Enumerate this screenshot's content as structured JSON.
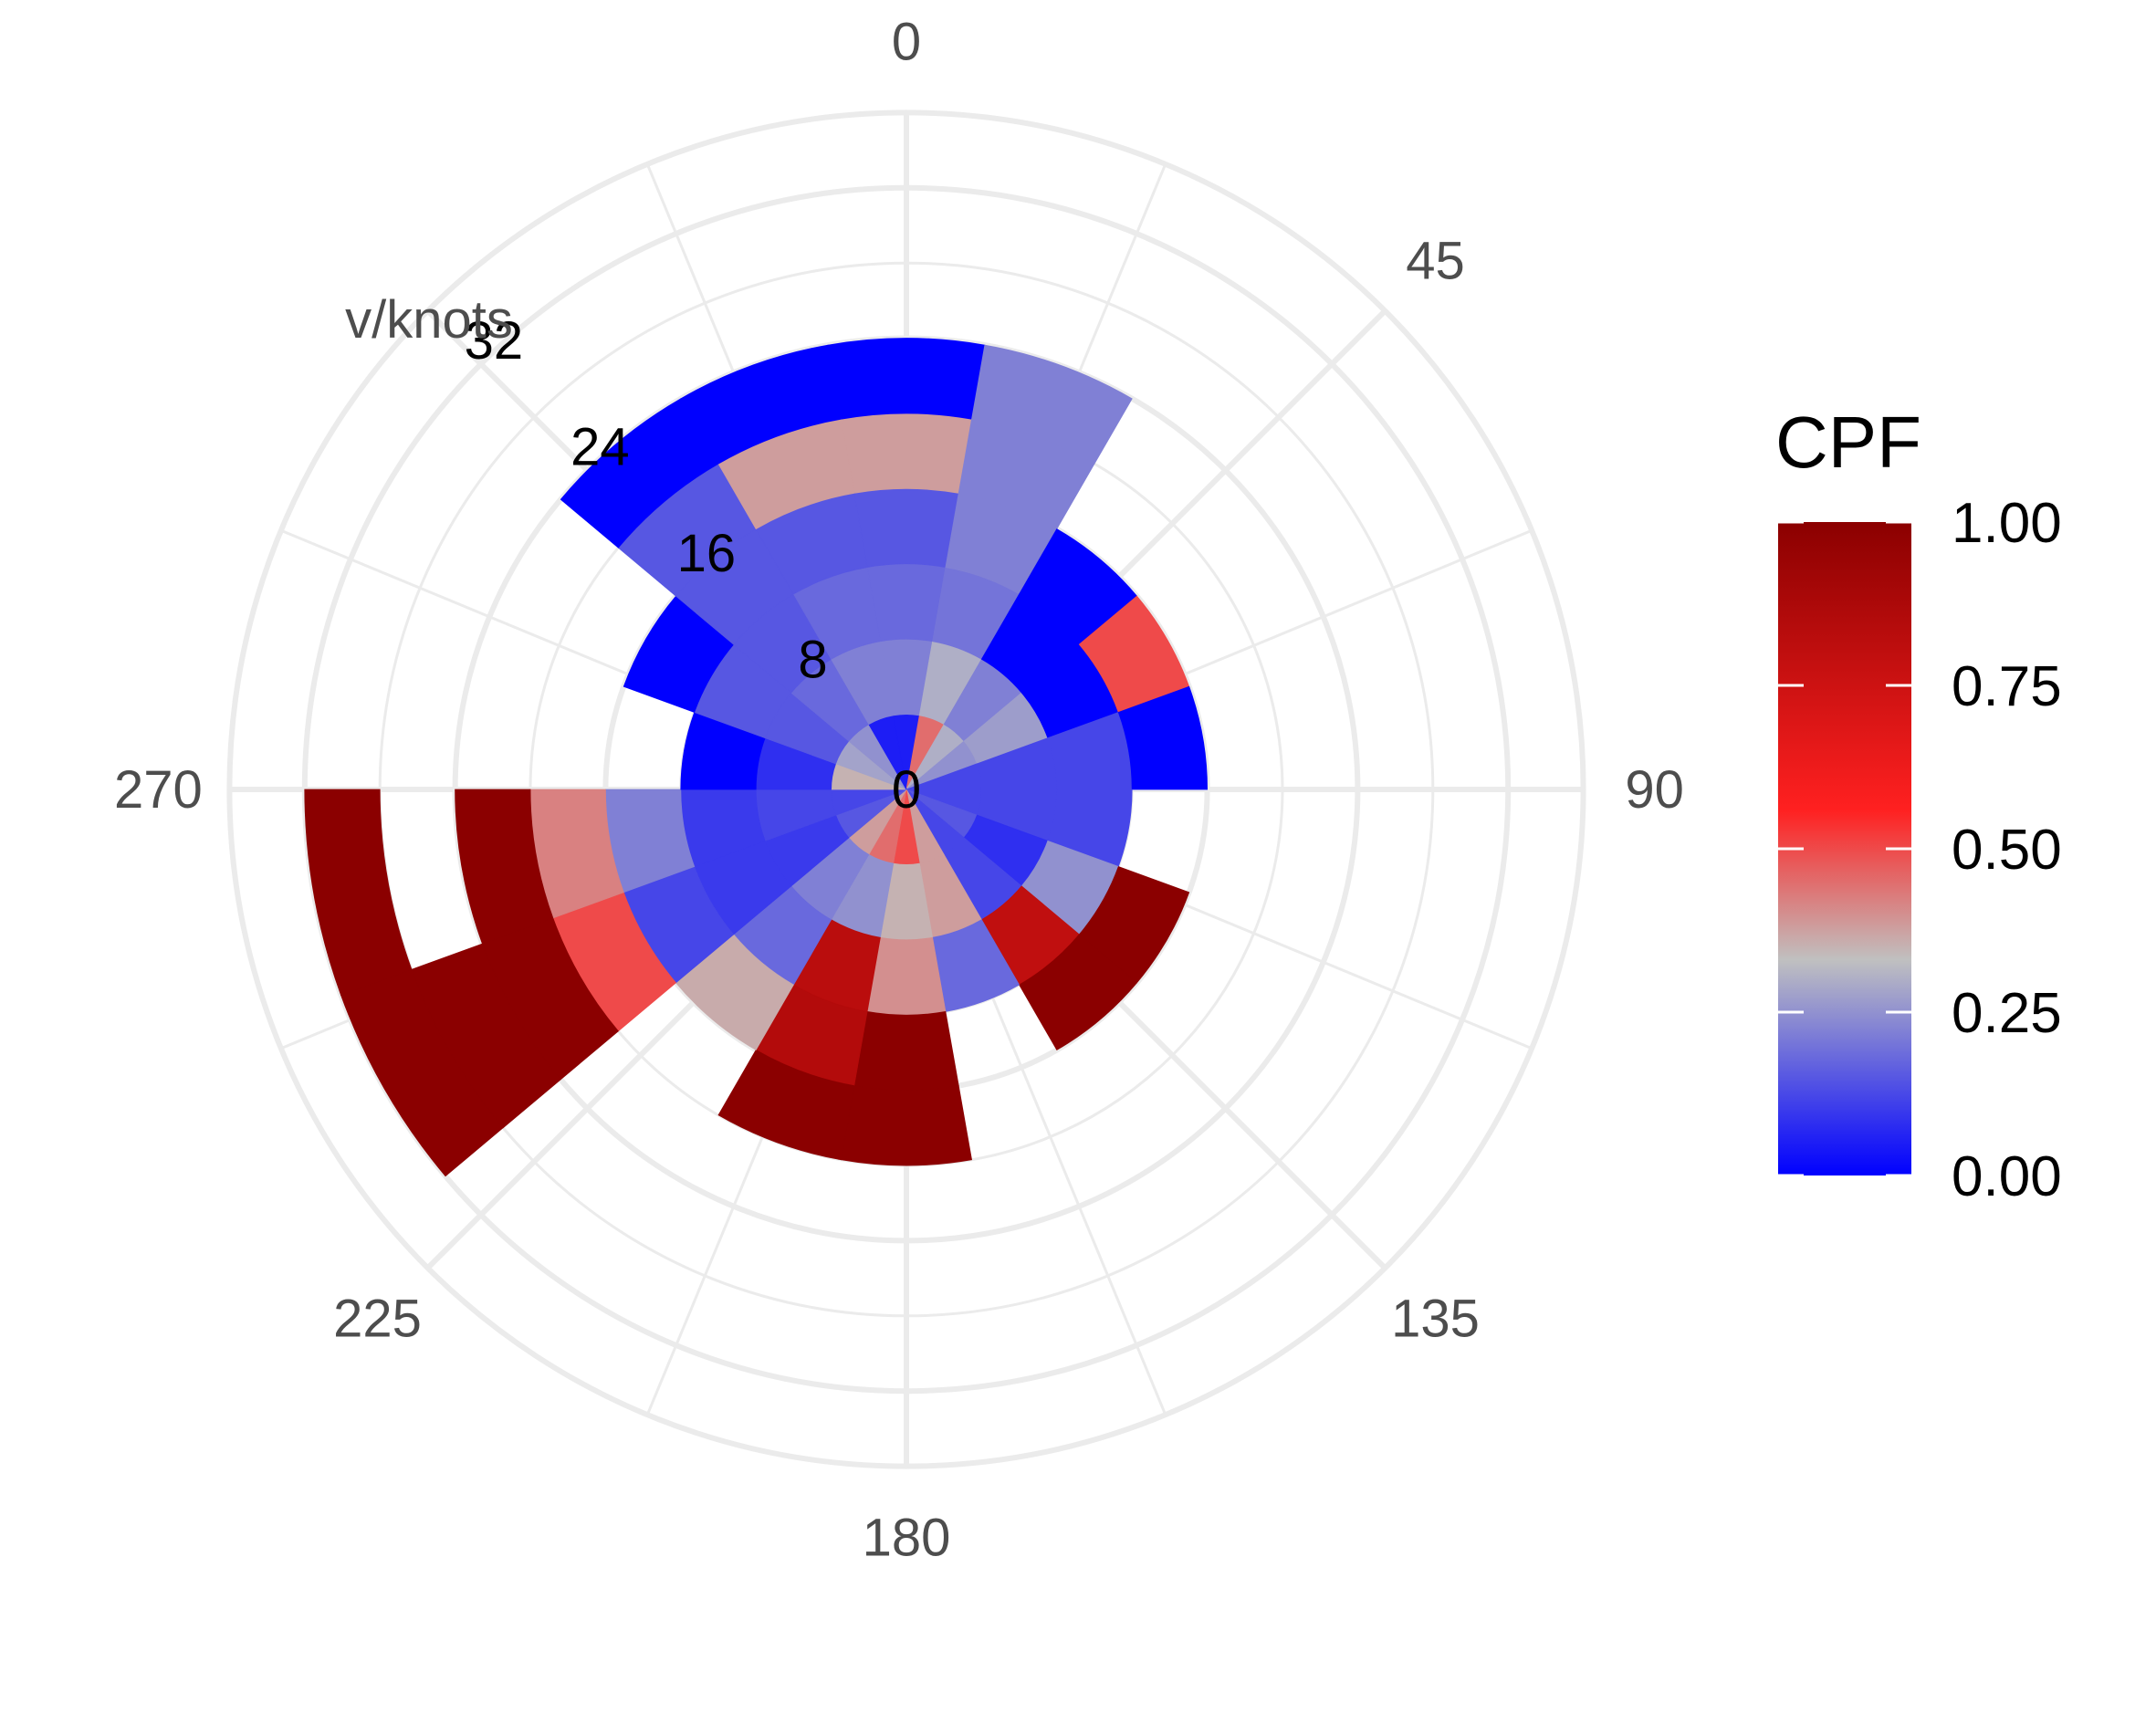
{
  "chart_data": {
    "type": "polar-heatmap",
    "title": "",
    "r_axis_title": "v/knots",
    "direction_ticks": [
      0,
      45,
      90,
      135,
      180,
      225,
      270
    ],
    "direction_tick_labels": [
      "0",
      "45",
      "90",
      "135",
      "180",
      "225",
      "270"
    ],
    "speed_ticks": [
      0,
      8,
      16,
      24,
      32
    ],
    "speed_tick_labels": [
      "0",
      "8",
      "16",
      "24",
      "32"
    ],
    "speed_range": [
      0,
      36
    ],
    "direction_bin_width": 20,
    "speed_bin_width": 4,
    "grid": true,
    "colorbar": {
      "title": "CPF",
      "range": [
        0,
        1
      ],
      "ticks": [
        0,
        0.25,
        0.5,
        0.75,
        1
      ],
      "tick_labels": [
        "0.00",
        "0.25",
        "0.50",
        "0.75",
        "1.00"
      ],
      "colors": [
        "#0000ff",
        "#c0c0c0",
        "#ff2020",
        "#8b0000"
      ],
      "placement": "right"
    },
    "cells": [
      {
        "direction": 0,
        "speed_bins": [
          [
            0,
            4,
            0.05
          ],
          [
            4,
            8,
            0.22
          ],
          [
            8,
            12,
            0.18
          ],
          [
            12,
            16,
            0.15
          ],
          [
            16,
            20,
            0.38
          ],
          [
            20,
            24,
            0.0
          ]
        ]
      },
      {
        "direction": 20,
        "speed_bins": [
          [
            0,
            4,
            0.45
          ],
          [
            4,
            8,
            0.3
          ],
          [
            8,
            12,
            0.2
          ],
          [
            12,
            16,
            0.22
          ],
          [
            16,
            20,
            0.22
          ],
          [
            20,
            24,
            0.22
          ]
        ]
      },
      {
        "direction": 40,
        "speed_bins": [
          [
            0,
            4,
            0.3
          ],
          [
            4,
            8,
            0.22
          ],
          [
            8,
            12,
            0.0
          ],
          [
            12,
            16,
            0.0
          ]
        ]
      },
      {
        "direction": 60,
        "speed_bins": [
          [
            0,
            4,
            0.25
          ],
          [
            4,
            8,
            0.27
          ],
          [
            8,
            12,
            0.0
          ],
          [
            12,
            16,
            0.5
          ]
        ]
      },
      {
        "direction": 80,
        "speed_bins": [
          [
            0,
            4,
            0.12
          ],
          [
            4,
            8,
            0.12
          ],
          [
            8,
            12,
            0.12
          ],
          [
            12,
            16,
            0.0
          ]
        ]
      },
      {
        "direction": 100,
        "speed_bins": [
          [
            0,
            4,
            0.12
          ],
          [
            4,
            8,
            0.12
          ],
          [
            8,
            12,
            0.12
          ]
        ]
      },
      {
        "direction": 120,
        "speed_bins": [
          [
            0,
            4,
            0.15
          ],
          [
            4,
            8,
            0.08
          ],
          [
            8,
            12,
            0.25
          ],
          [
            12,
            16,
            1.0
          ]
        ]
      },
      {
        "direction": 140,
        "speed_bins": [
          [
            0,
            4,
            0.12
          ],
          [
            4,
            8,
            0.12
          ],
          [
            8,
            12,
            0.8
          ],
          [
            12,
            16,
            1.0
          ]
        ]
      },
      {
        "direction": 160,
        "speed_bins": [
          [
            0,
            4,
            0.38
          ],
          [
            4,
            8,
            0.38
          ],
          [
            8,
            12,
            0.18
          ]
        ]
      },
      {
        "direction": 180,
        "speed_bins": [
          [
            0,
            4,
            0.5
          ],
          [
            4,
            8,
            0.35
          ],
          [
            8,
            12,
            0.4
          ],
          [
            12,
            16,
            1.0
          ],
          [
            16,
            20,
            1.0
          ]
        ]
      },
      {
        "direction": 200,
        "speed_bins": [
          [
            0,
            4,
            0.45
          ],
          [
            4,
            8,
            0.25
          ],
          [
            8,
            12,
            0.82
          ],
          [
            12,
            16,
            0.85
          ],
          [
            16,
            20,
            1.0
          ]
        ]
      },
      {
        "direction": 220,
        "speed_bins": [
          [
            0,
            4,
            0.38
          ],
          [
            4,
            8,
            0.22
          ],
          [
            8,
            12,
            0.18
          ],
          [
            12,
            16,
            0.36
          ]
        ]
      },
      {
        "direction": 240,
        "speed_bins": [
          [
            0,
            4,
            0.15
          ],
          [
            4,
            8,
            0.1
          ],
          [
            8,
            12,
            0.1
          ],
          [
            12,
            16,
            0.12
          ],
          [
            16,
            20,
            0.5
          ],
          [
            20,
            24,
            1.0
          ],
          [
            24,
            28,
            1.0
          ],
          [
            28,
            32,
            1.0
          ]
        ]
      },
      {
        "direction": 260,
        "speed_bins": [
          [
            0,
            4,
            0.12
          ],
          [
            4,
            8,
            0.12
          ],
          [
            8,
            12,
            0.1
          ],
          [
            12,
            16,
            0.22
          ],
          [
            16,
            20,
            0.42
          ],
          [
            20,
            24,
            1.0
          ],
          [
            28,
            32,
            1.0
          ]
        ]
      },
      {
        "direction": 280,
        "speed_bins": [
          [
            0,
            4,
            0.35
          ],
          [
            4,
            8,
            0.08
          ],
          [
            8,
            12,
            0.0
          ]
        ]
      },
      {
        "direction": 300,
        "speed_bins": [
          [
            0,
            4,
            0.28
          ],
          [
            4,
            8,
            0.15
          ],
          [
            8,
            12,
            0.15
          ],
          [
            12,
            16,
            0.0
          ]
        ]
      },
      {
        "direction": 320,
        "speed_bins": [
          [
            0,
            4,
            0.25
          ],
          [
            4,
            8,
            0.18
          ],
          [
            8,
            12,
            0.15
          ],
          [
            12,
            16,
            0.15
          ],
          [
            16,
            20,
            0.15
          ],
          [
            20,
            24,
            0.0
          ]
        ]
      },
      {
        "direction": 340,
        "speed_bins": [
          [
            0,
            4,
            0.05
          ],
          [
            4,
            8,
            0.22
          ],
          [
            8,
            12,
            0.18
          ],
          [
            12,
            16,
            0.15
          ],
          [
            16,
            20,
            0.38
          ],
          [
            20,
            24,
            0.0
          ]
        ]
      }
    ]
  }
}
